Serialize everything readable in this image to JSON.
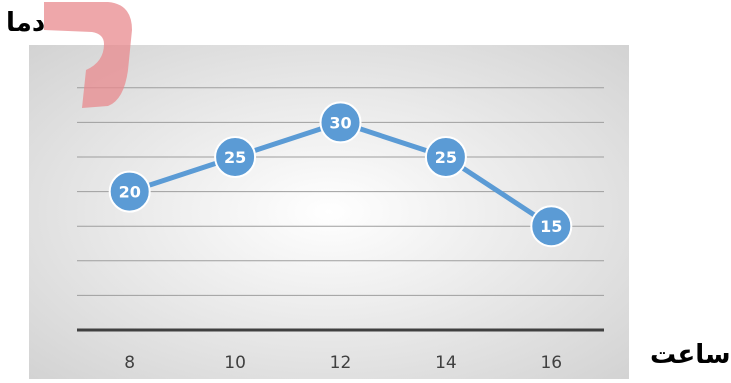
{
  "chart_data": {
    "type": "line",
    "title": "",
    "xlabel": "ساعت",
    "ylabel": "دما",
    "categories": [
      "8",
      "10",
      "12",
      "14",
      "16"
    ],
    "series": [
      {
        "values": [
          20,
          25,
          30,
          25,
          15
        ]
      }
    ],
    "ylim": [
      0,
      35
    ],
    "grid": true,
    "data_labels": true,
    "legend": "none",
    "colors": {
      "line": "#5b9bd5",
      "marker": "#5b9bd5",
      "label_text": "#ffffff",
      "gridline": "#9e9e9e",
      "x_axis_line": "#404040",
      "tick_text": "#404040",
      "plot_bg_center": "#ffffff",
      "plot_bg_edge": "#d3d3d3",
      "decoration": "#e8898e"
    }
  }
}
